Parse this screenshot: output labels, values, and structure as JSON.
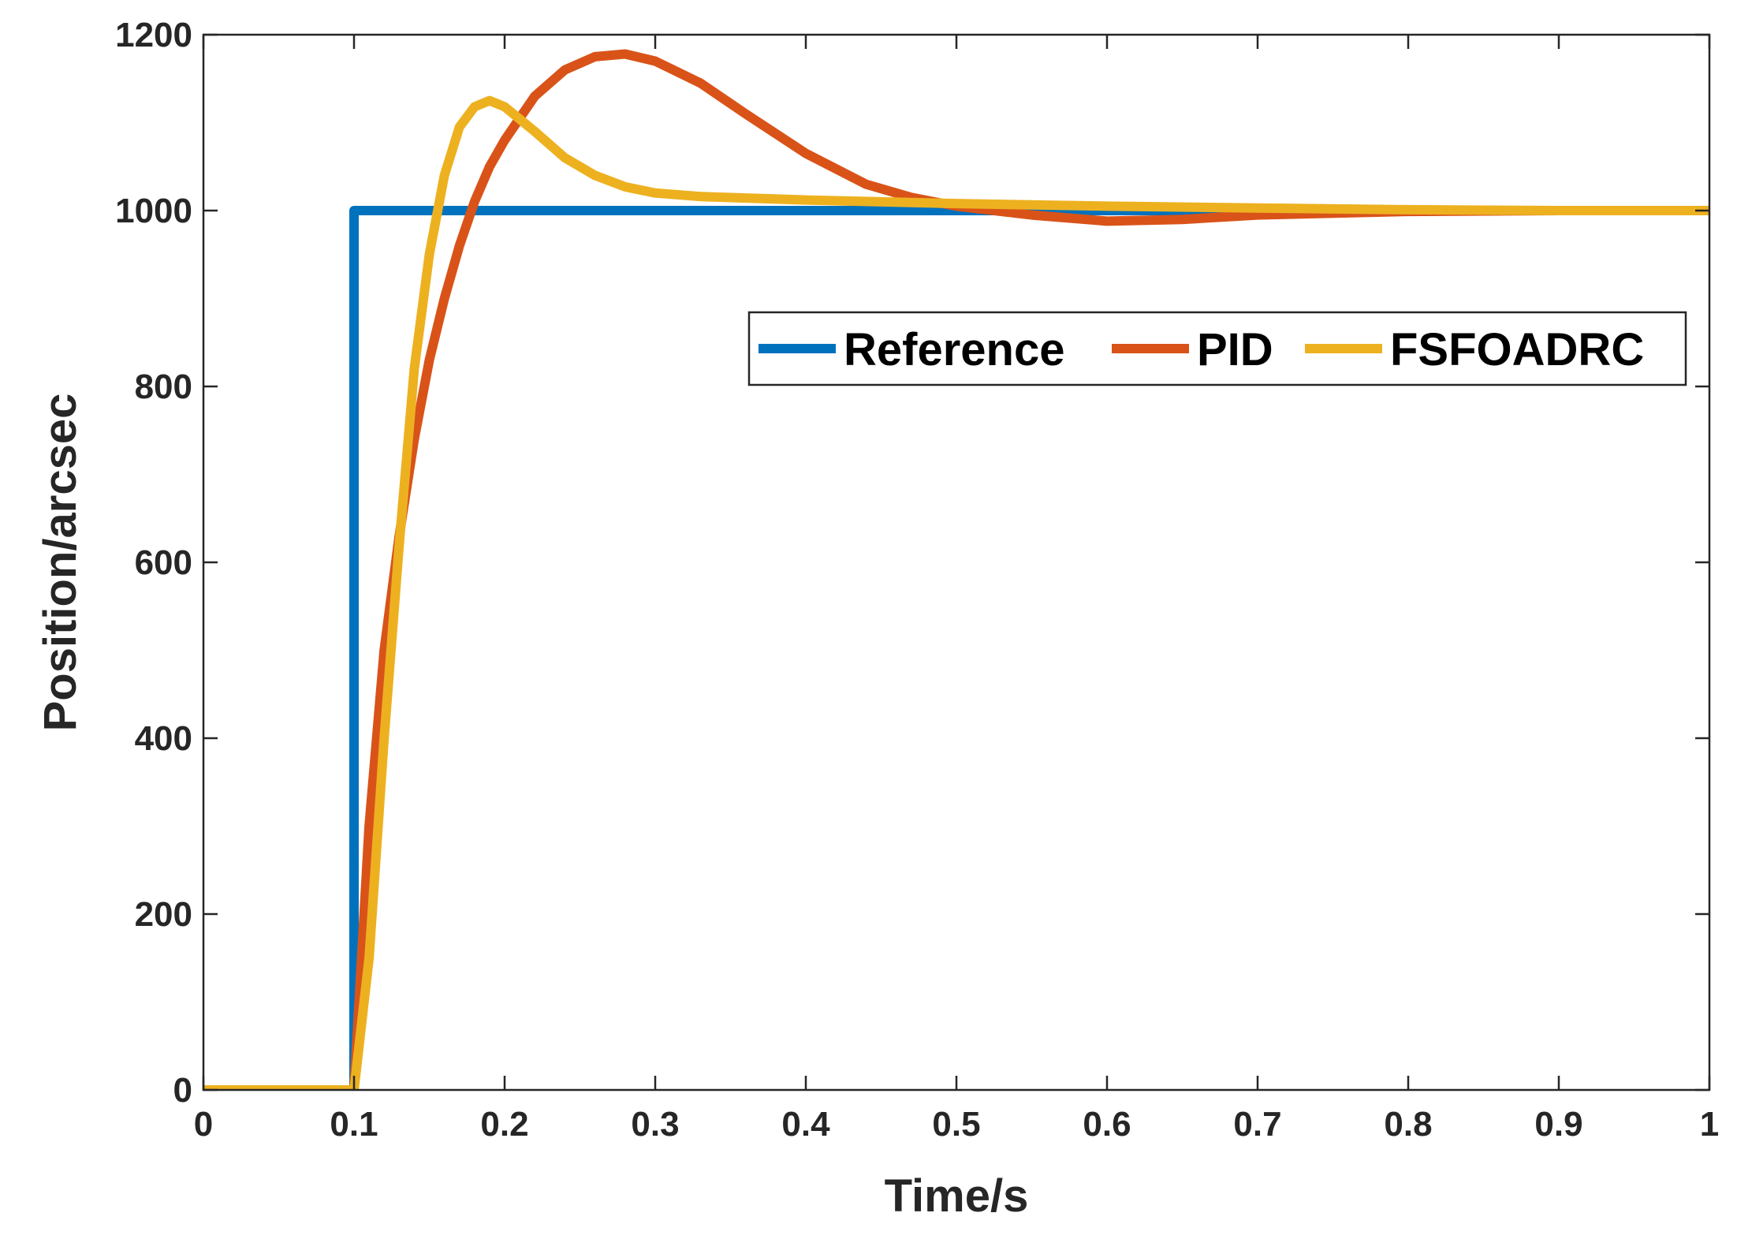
{
  "chart_data": {
    "type": "line",
    "title": "",
    "xlabel": "Time/s",
    "ylabel": "Position/arcsec",
    "xlim": [
      0,
      1
    ],
    "ylim": [
      0,
      1200
    ],
    "xticks": [
      0,
      0.1,
      0.2,
      0.3,
      0.4,
      0.5,
      0.6,
      0.7,
      0.8,
      0.9,
      1
    ],
    "xtick_labels": [
      "0",
      "0.1",
      "0.2",
      "0.3",
      "0.4",
      "0.5",
      "0.6",
      "0.7",
      "0.8",
      "0.9",
      "1"
    ],
    "yticks": [
      0,
      200,
      400,
      600,
      800,
      1000,
      1200
    ],
    "ytick_labels": [
      "0",
      "200",
      "400",
      "600",
      "800",
      "1000",
      "1200"
    ],
    "grid": false,
    "legend": {
      "placement": "upper-right",
      "orientation": "horizontal"
    },
    "series": [
      {
        "name": "Reference",
        "color": "#0072BD",
        "x": [
          0,
          0.1,
          0.1,
          1
        ],
        "y": [
          0,
          0,
          1000,
          1000
        ]
      },
      {
        "name": "PID",
        "color": "#D95319",
        "x": [
          0,
          0.1,
          0.11,
          0.12,
          0.13,
          0.14,
          0.15,
          0.16,
          0.17,
          0.18,
          0.19,
          0.2,
          0.22,
          0.24,
          0.26,
          0.28,
          0.3,
          0.33,
          0.36,
          0.4,
          0.44,
          0.47,
          0.5,
          0.55,
          0.6,
          0.65,
          0.7,
          0.8,
          0.9,
          1
        ],
        "y": [
          0,
          0,
          300,
          500,
          630,
          740,
          830,
          900,
          960,
          1010,
          1050,
          1080,
          1130,
          1160,
          1175,
          1178,
          1170,
          1145,
          1110,
          1065,
          1030,
          1015,
          1005,
          995,
          988,
          990,
          995,
          999,
          1000,
          1000
        ]
      },
      {
        "name": "FSFOADRC",
        "color": "#EDB120",
        "x": [
          0,
          0.1,
          0.11,
          0.12,
          0.13,
          0.14,
          0.15,
          0.16,
          0.17,
          0.18,
          0.19,
          0.2,
          0.22,
          0.24,
          0.26,
          0.28,
          0.3,
          0.33,
          0.4,
          0.5,
          0.6,
          0.7,
          0.8,
          0.9,
          1
        ],
        "y": [
          0,
          0,
          150,
          400,
          620,
          820,
          950,
          1040,
          1095,
          1118,
          1125,
          1118,
          1090,
          1060,
          1040,
          1027,
          1020,
          1016,
          1012,
          1008,
          1005,
          1003,
          1001,
          1000,
          1000
        ]
      }
    ]
  }
}
